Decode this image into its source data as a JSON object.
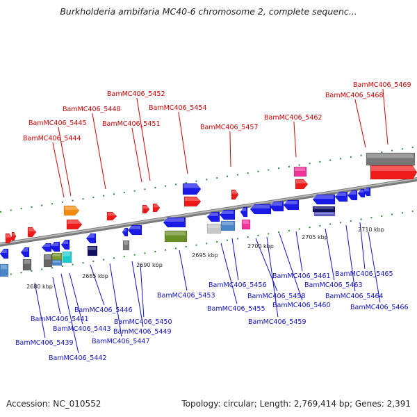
{
  "title": "Burkholderia ambifaria MC40-6 chromosome 2, complete sequenc...",
  "footer": {
    "accession": "Accession: NC_010552",
    "topology": "Topology: circular; Length: 2,769,414 bp; Genes: 2,391"
  },
  "colors": {
    "forward_label": "#d00000",
    "reverse_label": "#1010c8",
    "backbone": "#8c8c8c"
  },
  "ticks": [
    "2680 kbp",
    "2685 kbp",
    "2690 kbp",
    "2695 kbp",
    "2700 kbp",
    "2705 kbp",
    "2710 kbp"
  ],
  "forward_genes": [
    "BamMC406_5444",
    "BamMC406_5445",
    "BamMC406_5448",
    "BamMC406_5451",
    "BamMC406_5452",
    "BamMC406_5454",
    "BamMC406_5457",
    "BamMC406_5462",
    "BamMC406_5468",
    "BamMC406_5469"
  ],
  "reverse_genes": [
    "BamMC406_5439",
    "BamMC406_5441",
    "BamMC406_5442",
    "BamMC406_5443",
    "BamMC406_5446",
    "BamMC406_5447",
    "BamMC406_5449",
    "BamMC406_5450",
    "BamMC406_5453",
    "BamMC406_5455",
    "BamMC406_5456",
    "BamMC406_5458",
    "BamMC406_5459",
    "BamMC406_5460",
    "BamMC406_5461",
    "BamMC406_5463",
    "BamMC406_5464",
    "BamMC406_5465",
    "BamMC406_5466"
  ]
}
